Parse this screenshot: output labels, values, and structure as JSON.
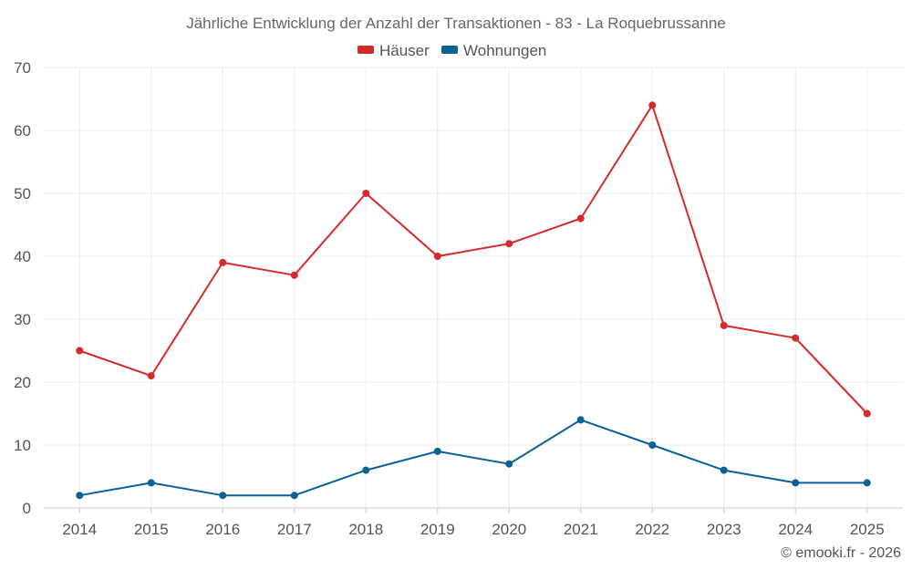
{
  "chart_data": {
    "type": "line",
    "title": "Jährliche Entwicklung der Anzahl der Transaktionen - 83 - La Roquebrussanne",
    "categories": [
      "2014",
      "2015",
      "2016",
      "2017",
      "2018",
      "2019",
      "2020",
      "2021",
      "2022",
      "2023",
      "2024",
      "2025"
    ],
    "ylim": [
      0,
      70
    ],
    "yticks": [
      0,
      10,
      20,
      30,
      40,
      50,
      60,
      70
    ],
    "grid": true,
    "legend_position": "top-center",
    "series": [
      {
        "name": "Häuser",
        "color": "#d32a2a",
        "values": [
          25,
          21,
          39,
          37,
          50,
          40,
          42,
          46,
          64,
          29,
          27,
          15
        ]
      },
      {
        "name": "Wohnungen",
        "color": "#0b6196",
        "values": [
          2,
          4,
          2,
          2,
          6,
          9,
          7,
          14,
          10,
          6,
          4,
          4
        ]
      }
    ]
  },
  "credit": "© emooki.fr - 2026"
}
